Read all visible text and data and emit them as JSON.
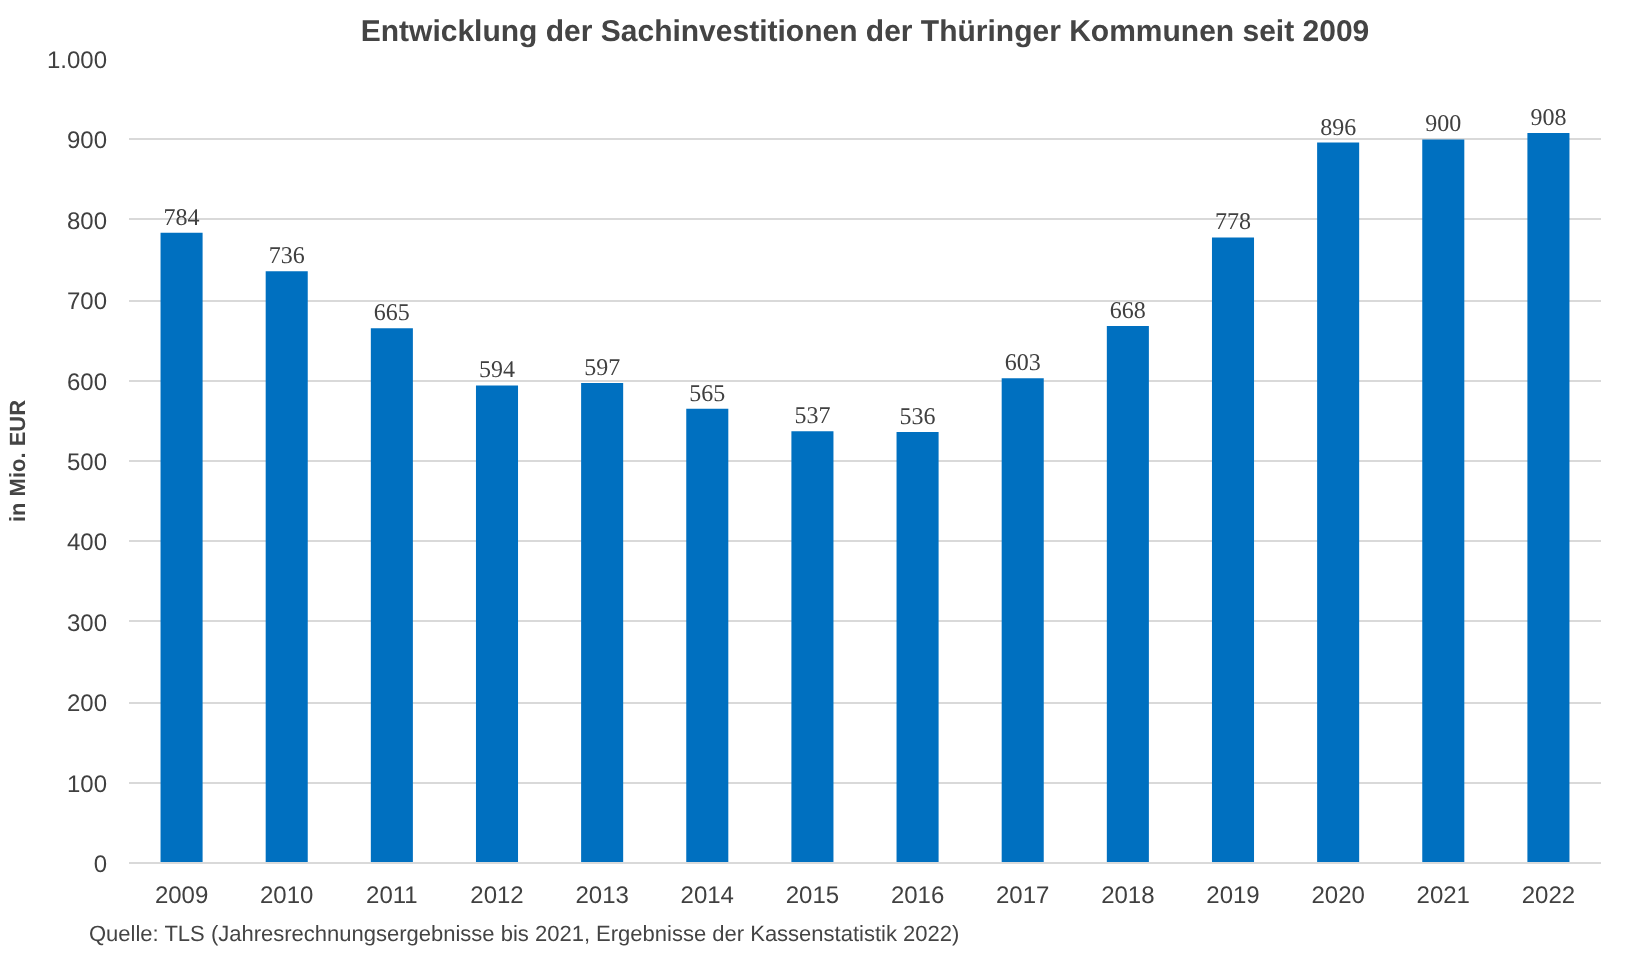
{
  "chart_data": {
    "type": "bar",
    "title": "Entwicklung der Sachinvestitionen der Thüringer Kommunen seit 2009",
    "ylabel": "in Mio. EUR",
    "categories": [
      "2009",
      "2010",
      "2011",
      "2012",
      "2013",
      "2014",
      "2015",
      "2016",
      "2017",
      "2018",
      "2019",
      "2020",
      "2021",
      "2022"
    ],
    "values": [
      784,
      736,
      665,
      594,
      597,
      565,
      537,
      536,
      603,
      668,
      778,
      896,
      900,
      908
    ],
    "color": "#0070c0",
    "ylim": [
      0,
      1000
    ],
    "yticks": [
      0,
      100,
      200,
      300,
      400,
      500,
      600,
      700,
      800,
      900,
      {
        "value": 1000,
        "label": "1.000"
      }
    ],
    "grid": "y",
    "data_labels": true,
    "annotations": [
      "Quelle: TLS (Jahresrechnungsergebnisse bis 2021, Ergebnisse der Kassenstatistik 2022)"
    ]
  }
}
